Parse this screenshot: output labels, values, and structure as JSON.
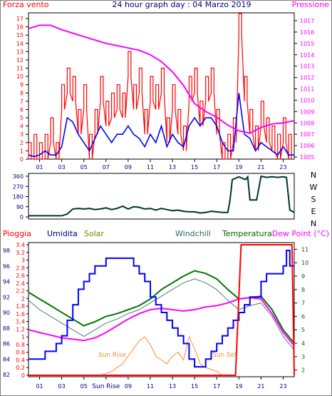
{
  "chart_data": [
    {
      "type": "line",
      "title": "24 hour graph day : 04 Marzo 2019",
      "left_label": "Forza vento",
      "right_label": "Pressione",
      "x_ticks": [
        "01",
        "03",
        "05",
        "07",
        "09",
        "11",
        "13",
        "15",
        "17",
        "19",
        "21",
        "23"
      ],
      "x_range": [
        0,
        24
      ],
      "left_ylim": [
        0,
        17
      ],
      "left_ticks": [
        "0",
        "1",
        "2",
        "3",
        "4",
        "5",
        "6",
        "7",
        "8",
        "9",
        "10",
        "11",
        "12",
        "13",
        "14",
        "15",
        "16",
        "17"
      ],
      "right_ylim": [
        1005,
        1017
      ],
      "right_ticks": [
        "1005",
        "1006",
        "1007",
        "1008",
        "1009",
        "1010",
        "1011",
        "1012",
        "1013",
        "1014",
        "1015",
        "1016",
        "1017"
      ],
      "series": [
        {
          "color": "#ff0000",
          "axis": "left",
          "style": "gust-spikes",
          "x": [
            0,
            0.5,
            1,
            1.5,
            2,
            2.5,
            3,
            3.5,
            4,
            4.5,
            5,
            5.5,
            6,
            6.5,
            7,
            7.5,
            8,
            8.5,
            9,
            9.5,
            10,
            10.5,
            11,
            11.5,
            12,
            12.5,
            13,
            13.5,
            14,
            14.5,
            15,
            15.5,
            16,
            16.5,
            17,
            17.5,
            18,
            18.5,
            19,
            19.5,
            20,
            20.5,
            21,
            21.5,
            22,
            22.5,
            23,
            23.5
          ],
          "y": [
            2,
            3,
            2,
            3,
            5,
            2,
            9,
            11,
            10,
            6,
            9,
            3,
            6,
            10,
            7,
            8,
            9,
            8,
            13,
            9,
            11,
            6,
            10,
            9,
            11,
            5,
            9,
            6,
            4,
            10,
            11,
            7,
            10,
            11,
            6,
            2,
            3,
            5,
            18,
            10,
            6,
            4,
            7,
            5,
            4,
            3,
            5,
            3
          ]
        },
        {
          "color": "#0000ff",
          "axis": "left",
          "x": [
            0,
            0.5,
            1,
            1.5,
            2,
            2.5,
            3,
            3.5,
            4,
            4.5,
            5,
            5.5,
            6,
            6.5,
            7,
            7.5,
            8,
            8.5,
            9,
            9.5,
            10,
            10.5,
            11,
            11.5,
            12,
            12.5,
            13,
            13.5,
            14,
            14.5,
            15,
            15.5,
            16,
            16.5,
            17,
            17.5,
            18,
            18.5,
            19,
            19.5,
            20,
            20.5,
            21,
            21.5,
            22,
            22.5,
            23,
            23.5,
            24
          ],
          "y": [
            0.5,
            0.3,
            0.5,
            1,
            0.5,
            0.5,
            1.5,
            5,
            4.5,
            3,
            2,
            1,
            2.5,
            4,
            3,
            2,
            3,
            3,
            4,
            3,
            2.5,
            1.5,
            3,
            2,
            4,
            1.5,
            3,
            2,
            1.5,
            4,
            5,
            4,
            5,
            5,
            4,
            2,
            1,
            1,
            8,
            3,
            2.5,
            1,
            2,
            1.5,
            1,
            0.5,
            1.5,
            0.5,
            0.5
          ]
        },
        {
          "color": "#ff00ff",
          "axis": "right",
          "x": [
            0,
            1,
            2,
            3,
            4,
            5,
            6,
            7,
            8,
            9,
            10,
            11,
            12,
            13,
            14,
            15,
            16,
            17,
            18,
            19,
            20,
            21,
            22,
            23,
            24
          ],
          "y": [
            1016.3,
            1016.6,
            1016.6,
            1016.2,
            1015.9,
            1015.6,
            1015.3,
            1015.0,
            1014.8,
            1014.6,
            1014.4,
            1014.0,
            1013.4,
            1012.5,
            1011.3,
            1009.7,
            1009.0,
            1008.5,
            1007.8,
            1007.3,
            1007.1,
            1007.6,
            1007.9,
            1008.0,
            1008.2
          ]
        }
      ]
    },
    {
      "type": "line",
      "title": "",
      "y_ticks": [
        "0",
        "90",
        "180",
        "270",
        "360"
      ],
      "ylim": [
        0,
        360
      ],
      "right_labels": [
        "N",
        "W",
        "S",
        "E",
        "N"
      ],
      "x_ticks": [
        "01",
        "03",
        "05",
        "07",
        "09",
        "11",
        "13",
        "15",
        "17",
        "19",
        "21",
        "23"
      ],
      "series": [
        {
          "color": "#003333",
          "x": [
            0,
            1,
            2,
            3,
            3.5,
            4,
            4.5,
            5,
            5.5,
            6,
            6.5,
            7,
            7.5,
            8,
            8.5,
            9,
            9.5,
            10,
            10.5,
            11,
            11.5,
            12,
            12.5,
            13,
            13.5,
            14,
            14.5,
            15,
            15.5,
            16,
            16.5,
            17,
            17.5,
            18,
            18.2,
            18.4,
            19,
            19.6,
            19.8,
            20,
            20.3,
            20.6,
            21,
            21.5,
            22,
            22.5,
            23,
            23.3,
            23.6,
            24
          ],
          "y": [
            10,
            10,
            10,
            10,
            25,
            70,
            75,
            70,
            75,
            65,
            70,
            80,
            65,
            75,
            95,
            70,
            90,
            85,
            70,
            75,
            60,
            75,
            65,
            55,
            60,
            50,
            45,
            45,
            35,
            40,
            50,
            45,
            40,
            40,
            150,
            330,
            355,
            330,
            355,
            150,
            150,
            150,
            360,
            350,
            355,
            350,
            355,
            350,
            60,
            40
          ]
        }
      ]
    },
    {
      "type": "line",
      "title": "",
      "legend": [
        "Pioggia",
        "Umidita",
        "Solar",
        "Windchill",
        "Temperatura",
        "Dew Point (°C)"
      ],
      "legend_colors": [
        "#ff0000",
        "#000080",
        "#808000",
        "#336666",
        "#006600",
        "#ff00ff"
      ],
      "left1_ticks": [
        "82",
        "84",
        "86",
        "88",
        "90",
        "92",
        "94",
        "96",
        "98"
      ],
      "left1_ylim": [
        82,
        98
      ],
      "left2_ticks": [
        "0",
        "0.2",
        "0.4",
        "0.6",
        "0.8",
        "1",
        "1.2",
        "1.4",
        "1.6",
        "1.8",
        "2",
        "2.2",
        "2.4",
        "2.6",
        "2.8",
        "3",
        "3.2",
        "3.4"
      ],
      "left2_ylim": [
        0,
        3.4
      ],
      "right_ticks": [
        "2",
        "3",
        "4",
        "5",
        "6",
        "7",
        "8",
        "9",
        "10",
        "11"
      ],
      "right_ylim": [
        1.5,
        11.5
      ],
      "x_ticks": [
        "01",
        "03",
        "05",
        "Sun Rise",
        "09",
        "11",
        "13",
        "15",
        "17",
        "19",
        "21",
        "23"
      ],
      "annotations": [
        "Sun Rise",
        "Sun Set"
      ],
      "series": [
        {
          "name": "Pioggia",
          "color": "#ff0000",
          "axis": "left2",
          "x": [
            0,
            18.3,
            18.7,
            19.2,
            19.5,
            23.8,
            24
          ],
          "y": [
            0,
            0,
            0,
            3.4,
            3.4,
            3.4,
            0
          ]
        },
        {
          "name": "Umidita",
          "color": "#0000ff",
          "axis": "left1",
          "x": [
            0,
            1,
            1.5,
            2,
            2.5,
            3,
            3.5,
            4,
            4.5,
            5,
            5.5,
            6,
            6.5,
            7,
            7.5,
            8,
            8.5,
            9,
            9.5,
            10,
            10.5,
            11,
            11.5,
            12,
            12.5,
            13,
            13.5,
            14,
            14.5,
            15,
            15.5,
            16,
            16.5,
            17,
            17.5,
            18,
            18.5,
            19,
            19.5,
            20,
            20.5,
            21,
            21.5,
            22,
            22.5,
            23,
            23.3,
            23.6,
            24
          ],
          "y": [
            84,
            84,
            85,
            85,
            86,
            87,
            89,
            91,
            93,
            94,
            95,
            96,
            96,
            97,
            97,
            97,
            97,
            97,
            96,
            95,
            94,
            92,
            91,
            90,
            89,
            88,
            87,
            86,
            84,
            83,
            83,
            84,
            85,
            86,
            87,
            88,
            89,
            90,
            91,
            92,
            92,
            94,
            95,
            95,
            95,
            96,
            98,
            96,
            96
          ]
        },
        {
          "name": "Windchill",
          "color": "#4a7a7a",
          "axis": "right",
          "x": [
            0,
            1,
            2,
            3,
            4,
            5,
            6,
            7,
            8,
            9,
            10,
            11,
            12,
            13,
            14,
            15,
            16,
            17,
            18,
            19,
            20,
            21,
            22,
            23,
            24
          ],
          "y": [
            7.2,
            6.5,
            6.0,
            5.5,
            5.0,
            4.5,
            5.0,
            5.5,
            5.8,
            6.2,
            6.5,
            7.0,
            7.5,
            8.0,
            8.5,
            8.8,
            8.5,
            8.0,
            7.2,
            6.5,
            6.8,
            7.0,
            6.0,
            4.5,
            3.5
          ]
        },
        {
          "name": "Temperatura",
          "color": "#007700",
          "axis": "right",
          "x": [
            0,
            1,
            2,
            3,
            4,
            5,
            6,
            7,
            8,
            9,
            10,
            11,
            12,
            13,
            14,
            15,
            16,
            17,
            18,
            19,
            20,
            21,
            22,
            23,
            24
          ],
          "y": [
            7.8,
            7.3,
            6.8,
            6.3,
            5.8,
            5.3,
            5.6,
            6.0,
            6.2,
            6.5,
            6.8,
            7.3,
            8.0,
            8.5,
            9.0,
            9.4,
            9.2,
            8.8,
            8.0,
            7.3,
            7.4,
            7.5,
            6.5,
            5.0,
            4.0
          ]
        },
        {
          "name": "Dew Point",
          "color": "#ff00ff",
          "axis": "right",
          "x": [
            0,
            1,
            2,
            3,
            4,
            5,
            6,
            7,
            8,
            9,
            10,
            11,
            12,
            13,
            14,
            15,
            16,
            17,
            18,
            19,
            20,
            21,
            22,
            23,
            24
          ],
          "y": [
            5.0,
            4.8,
            4.6,
            4.4,
            4.3,
            4.2,
            4.4,
            4.8,
            5.3,
            5.8,
            6.2,
            6.5,
            6.6,
            6.5,
            6.4,
            6.5,
            6.7,
            6.8,
            7.0,
            7.3,
            7.4,
            7.3,
            6.2,
            4.8,
            3.8
          ]
        },
        {
          "name": "Solar",
          "color": "#ff8833",
          "axis": "left2",
          "x": [
            6.5,
            7,
            7.5,
            8,
            8.5,
            9,
            9.5,
            10,
            10.5,
            11,
            11.5,
            12,
            12.5,
            13,
            13.5,
            14,
            14.5,
            15,
            15.5,
            16,
            16.5,
            17,
            17.5
          ],
          "y": [
            0,
            0.05,
            0.1,
            0.2,
            0.3,
            0.5,
            0.7,
            0.9,
            1.0,
            0.8,
            0.5,
            0.4,
            0.3,
            0.5,
            0.6,
            0.4,
            1.0,
            0.7,
            0.3,
            0.2,
            0.15,
            0.1,
            0
          ]
        }
      ]
    }
  ]
}
